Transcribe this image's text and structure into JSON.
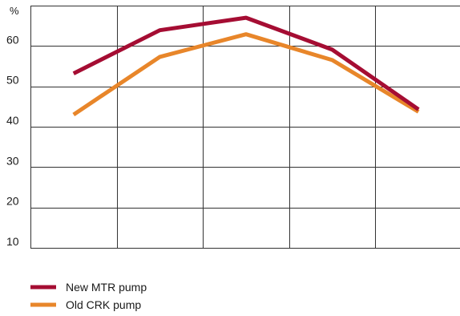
{
  "chart_data": {
    "type": "line",
    "ylabel": "%",
    "ylim": [
      10,
      70
    ],
    "yticks": [
      10,
      20,
      30,
      40,
      50,
      60
    ],
    "x": [
      1,
      2,
      3,
      4,
      5
    ],
    "xlim": [
      0.5,
      5.5
    ],
    "grid": true,
    "legend_position": "bottom-left",
    "series": [
      {
        "name": "New MTR pump",
        "color": "#a50d33",
        "values": [
          53.2,
          63.9,
          67.0,
          59.1,
          44.3
        ]
      },
      {
        "name": "Old CRK pump",
        "color": "#e8862a",
        "values": [
          43.0,
          57.3,
          62.9,
          56.5,
          43.7
        ]
      }
    ]
  }
}
